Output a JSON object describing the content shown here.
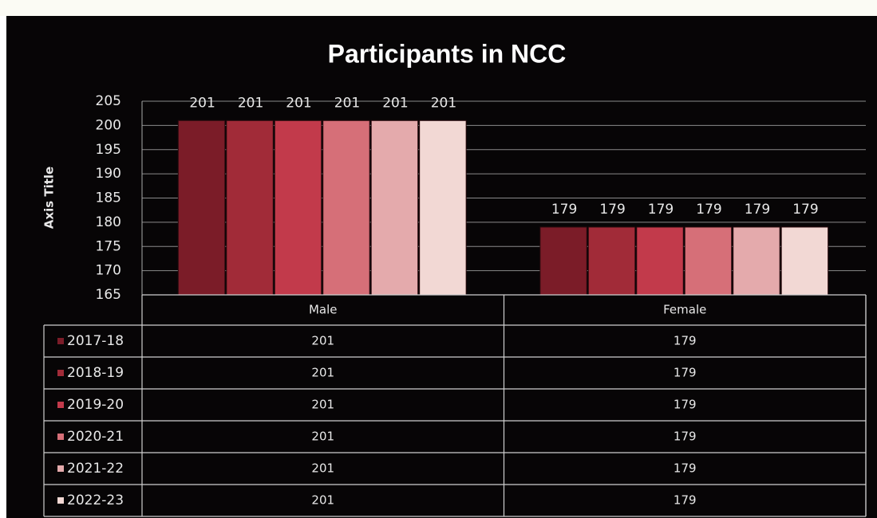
{
  "chart_data": {
    "type": "bar",
    "title": "Participants in NCC",
    "y_label": "Axis Title",
    "categories": [
      "Male",
      "Female"
    ],
    "series": [
      {
        "name": "2017-18",
        "color": "#7b1c28",
        "values": [
          201,
          179
        ]
      },
      {
        "name": "2018-19",
        "color": "#a12b38",
        "values": [
          201,
          179
        ]
      },
      {
        "name": "2019-20",
        "color": "#c23a4b",
        "values": [
          201,
          179
        ]
      },
      {
        "name": "2020-21",
        "color": "#d66f78",
        "values": [
          201,
          179
        ]
      },
      {
        "name": "2021-22",
        "color": "#e4aaac",
        "values": [
          201,
          179
        ]
      },
      {
        "name": "2022-23",
        "color": "#f2d8d4",
        "values": [
          201,
          179
        ]
      }
    ],
    "ylim": [
      165,
      205
    ],
    "yticks": [
      165,
      170,
      175,
      180,
      185,
      190,
      195,
      200,
      205
    ],
    "grid": true
  }
}
